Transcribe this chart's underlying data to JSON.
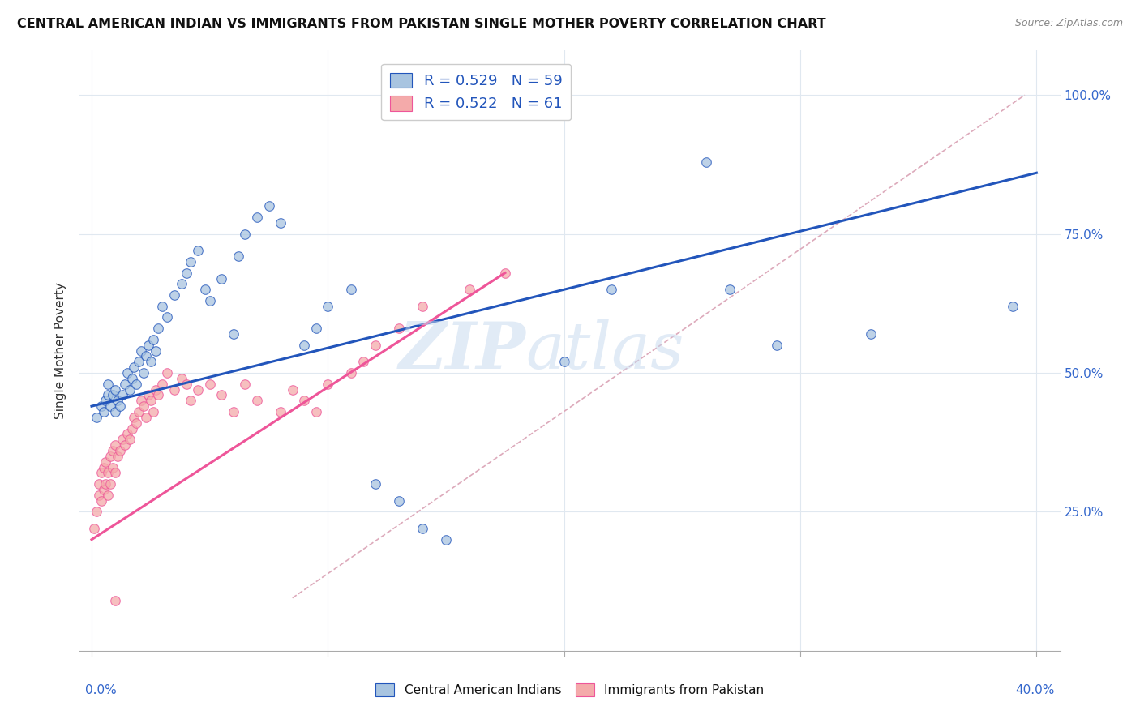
{
  "title": "CENTRAL AMERICAN INDIAN VS IMMIGRANTS FROM PAKISTAN SINGLE MOTHER POVERTY CORRELATION CHART",
  "source": "Source: ZipAtlas.com",
  "ylabel": "Single Mother Poverty",
  "y_ticks": [
    0.25,
    0.5,
    0.75,
    1.0
  ],
  "y_tick_labels": [
    "25.0%",
    "50.0%",
    "75.0%",
    "100.0%"
  ],
  "legend_r1": "R = 0.529",
  "legend_n1": "N = 59",
  "legend_r2": "R = 0.522",
  "legend_n2": "N = 61",
  "blue_color": "#A8C4E0",
  "pink_color": "#F4AAAA",
  "line_blue": "#2255BB",
  "line_pink": "#EE5599",
  "diagonal_color": "#DDAABB",
  "blue_scatter_x": [
    0.002,
    0.004,
    0.005,
    0.006,
    0.007,
    0.007,
    0.008,
    0.009,
    0.01,
    0.01,
    0.011,
    0.012,
    0.013,
    0.014,
    0.015,
    0.016,
    0.017,
    0.018,
    0.019,
    0.02,
    0.021,
    0.022,
    0.023,
    0.024,
    0.025,
    0.026,
    0.027,
    0.028,
    0.03,
    0.032,
    0.035,
    0.038,
    0.04,
    0.042,
    0.045,
    0.048,
    0.05,
    0.055,
    0.06,
    0.062,
    0.065,
    0.07,
    0.075,
    0.08,
    0.09,
    0.095,
    0.1,
    0.11,
    0.12,
    0.13,
    0.14,
    0.15,
    0.2,
    0.22,
    0.26,
    0.27,
    0.29,
    0.33,
    0.39
  ],
  "blue_scatter_y": [
    0.42,
    0.44,
    0.43,
    0.45,
    0.46,
    0.48,
    0.44,
    0.46,
    0.43,
    0.47,
    0.45,
    0.44,
    0.46,
    0.48,
    0.5,
    0.47,
    0.49,
    0.51,
    0.48,
    0.52,
    0.54,
    0.5,
    0.53,
    0.55,
    0.52,
    0.56,
    0.54,
    0.58,
    0.62,
    0.6,
    0.64,
    0.66,
    0.68,
    0.7,
    0.72,
    0.65,
    0.63,
    0.67,
    0.57,
    0.71,
    0.75,
    0.78,
    0.8,
    0.77,
    0.55,
    0.58,
    0.62,
    0.65,
    0.3,
    0.27,
    0.22,
    0.2,
    0.52,
    0.65,
    0.88,
    0.65,
    0.55,
    0.57,
    0.62
  ],
  "pink_scatter_x": [
    0.001,
    0.002,
    0.003,
    0.003,
    0.004,
    0.004,
    0.005,
    0.005,
    0.006,
    0.006,
    0.007,
    0.007,
    0.008,
    0.008,
    0.009,
    0.009,
    0.01,
    0.01,
    0.011,
    0.012,
    0.013,
    0.014,
    0.015,
    0.016,
    0.017,
    0.018,
    0.019,
    0.02,
    0.021,
    0.022,
    0.023,
    0.024,
    0.025,
    0.026,
    0.027,
    0.028,
    0.03,
    0.032,
    0.035,
    0.038,
    0.04,
    0.042,
    0.045,
    0.05,
    0.055,
    0.06,
    0.065,
    0.07,
    0.08,
    0.085,
    0.09,
    0.095,
    0.1,
    0.11,
    0.115,
    0.12,
    0.13,
    0.14,
    0.16,
    0.175,
    0.01
  ],
  "pink_scatter_y": [
    0.22,
    0.25,
    0.28,
    0.3,
    0.27,
    0.32,
    0.29,
    0.33,
    0.3,
    0.34,
    0.28,
    0.32,
    0.3,
    0.35,
    0.33,
    0.36,
    0.32,
    0.37,
    0.35,
    0.36,
    0.38,
    0.37,
    0.39,
    0.38,
    0.4,
    0.42,
    0.41,
    0.43,
    0.45,
    0.44,
    0.42,
    0.46,
    0.45,
    0.43,
    0.47,
    0.46,
    0.48,
    0.5,
    0.47,
    0.49,
    0.48,
    0.45,
    0.47,
    0.48,
    0.46,
    0.43,
    0.48,
    0.45,
    0.43,
    0.47,
    0.45,
    0.43,
    0.48,
    0.5,
    0.52,
    0.55,
    0.58,
    0.62,
    0.65,
    0.68,
    0.09
  ],
  "blue_line_x": [
    0.0,
    0.4
  ],
  "blue_line_y": [
    0.44,
    0.86
  ],
  "pink_line_x": [
    0.0,
    0.175
  ],
  "pink_line_y": [
    0.2,
    0.68
  ],
  "diag_line_x": [
    0.085,
    0.395
  ],
  "diag_line_y": [
    0.095,
    1.0
  ],
  "xlim": [
    -0.005,
    0.41
  ],
  "ylim": [
    0.0,
    1.08
  ],
  "x_tick_positions": [
    0.0,
    0.1,
    0.2,
    0.3,
    0.4
  ],
  "grid_color": "#E0E8F0",
  "bg_color": "#FFFFFF"
}
